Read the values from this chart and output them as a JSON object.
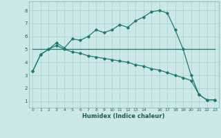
{
  "xlabel": "Humidex (Indice chaleur)",
  "bg_color": "#cce8e4",
  "grid_color": "#aad4ce",
  "line_color": "#1a7a6e",
  "ylim": [
    0.5,
    8.7
  ],
  "xlim": [
    -0.5,
    23.5
  ],
  "line1_x": [
    0,
    1,
    2,
    3,
    4,
    5,
    6,
    7,
    8,
    9,
    10,
    11,
    12,
    13,
    14,
    15,
    16,
    17,
    18,
    19,
    20,
    21,
    22,
    23
  ],
  "line1_y": [
    3.3,
    4.6,
    5.0,
    5.5,
    5.1,
    5.8,
    5.7,
    6.0,
    6.5,
    6.3,
    6.5,
    6.9,
    6.7,
    7.2,
    7.5,
    7.9,
    8.0,
    7.8,
    6.5,
    5.0,
    3.0,
    1.5,
    1.1,
    1.1
  ],
  "line2_x": [
    0,
    1,
    2,
    3,
    4,
    5,
    6,
    7,
    8,
    9,
    10,
    11,
    12,
    13,
    14,
    15,
    16,
    17,
    18,
    19,
    20,
    21,
    22,
    23
  ],
  "line2_y": [
    3.3,
    4.6,
    5.0,
    5.3,
    5.0,
    4.8,
    4.7,
    4.5,
    4.4,
    4.3,
    4.2,
    4.1,
    4.0,
    3.8,
    3.7,
    3.5,
    3.4,
    3.2,
    3.0,
    2.8,
    2.6,
    1.5,
    1.1,
    1.1
  ],
  "line3_x": [
    0,
    23
  ],
  "line3_y": [
    5.0,
    5.0
  ],
  "yticks": [
    1,
    2,
    3,
    4,
    5,
    6,
    7,
    8
  ],
  "xtick_positions": [
    0,
    1,
    2,
    3,
    4,
    5,
    6,
    7,
    8,
    9,
    10,
    11,
    12,
    13,
    14,
    16,
    17,
    18,
    19,
    20,
    21,
    22,
    23
  ],
  "xtick_labels": [
    "0",
    "1",
    "2",
    "3",
    "4",
    "5",
    "6",
    "7",
    "8",
    "9",
    "10",
    "11",
    "12",
    "13",
    "14",
    "16",
    "17",
    "18",
    "19",
    "20",
    "21",
    "22",
    "23"
  ]
}
